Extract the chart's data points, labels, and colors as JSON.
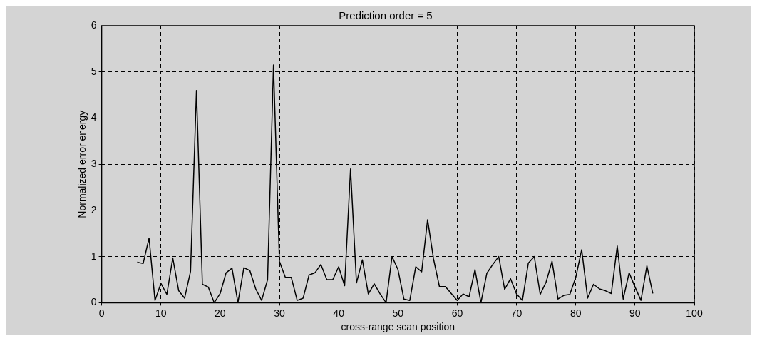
{
  "chart_data": {
    "type": "line",
    "title": "Prediction order = 5",
    "xlabel": "cross-range scan position",
    "ylabel": "Normalized error energy",
    "x": [
      6,
      7,
      8,
      9,
      10,
      11,
      12,
      13,
      14,
      15,
      16,
      17,
      18,
      19,
      20,
      21,
      22,
      23,
      24,
      25,
      26,
      27,
      28,
      29,
      30,
      31,
      32,
      33,
      34,
      35,
      36,
      37,
      38,
      39,
      40,
      41,
      42,
      43,
      44,
      45,
      46,
      47,
      48,
      49,
      50,
      51,
      52,
      53,
      54,
      55,
      56,
      57,
      58,
      59,
      60,
      61,
      62,
      63,
      64,
      65,
      66,
      67,
      68,
      69,
      70,
      71,
      72,
      73,
      74,
      75,
      76,
      77,
      78,
      79,
      80,
      81,
      82,
      83,
      84,
      85,
      86,
      87,
      88,
      89,
      90,
      91,
      92,
      93
    ],
    "series": [
      {
        "color": "#000000",
        "values": [
          0.88,
          0.85,
          1.4,
          0.05,
          0.42,
          0.18,
          0.97,
          0.26,
          0.1,
          0.68,
          4.6,
          0.4,
          0.34,
          0,
          0.2,
          0.65,
          0.75,
          0,
          0.76,
          0.7,
          0.3,
          0.05,
          0.5,
          5.15,
          0.9,
          0.55,
          0.55,
          0.05,
          0.1,
          0.6,
          0.65,
          0.83,
          0.5,
          0.5,
          0.78,
          0.37,
          2.9,
          0.43,
          0.93,
          0.19,
          0.41,
          0.19,
          0,
          1,
          0.72,
          0.08,
          0.05,
          0.78,
          0.67,
          1.8,
          0.95,
          0.35,
          0.35,
          0.2,
          0.05,
          0.19,
          0.13,
          0.72,
          0,
          0.64,
          0.83,
          1,
          0.29,
          0.52,
          0.19,
          0.05,
          0.86,
          1,
          0.18,
          0.45,
          0.9,
          0.08,
          0.16,
          0.18,
          0.55,
          1.15,
          0.1,
          0.4,
          0.3,
          0.26,
          0.2,
          1.23,
          0.08,
          0.65,
          0.34,
          0.05,
          0.8,
          0.2
        ]
      }
    ],
    "xlim": [
      0,
      100
    ],
    "xticks": [
      0,
      10,
      20,
      30,
      40,
      50,
      60,
      70,
      80,
      90,
      100
    ],
    "ylim": [
      0,
      6
    ],
    "yticks": [
      0,
      1,
      2,
      3,
      4,
      5,
      6
    ],
    "grid": true,
    "legend": false,
    "marker": "none",
    "line_style": "solid"
  }
}
